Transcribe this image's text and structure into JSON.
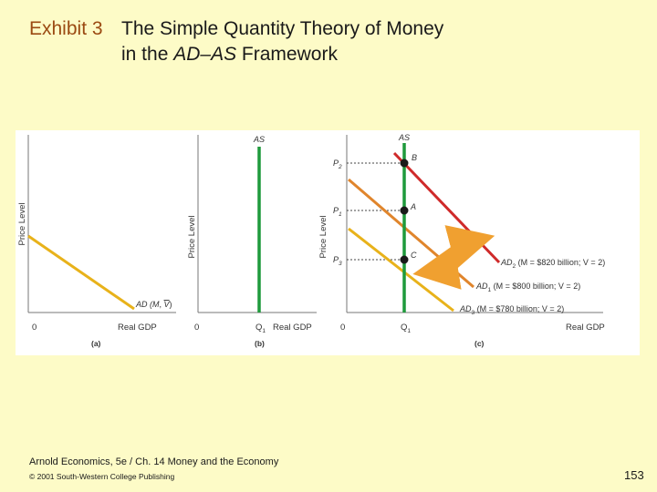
{
  "slide": {
    "exhibit_label": "Exhibit 3",
    "title_line1": "The Simple Quantity Theory of Money",
    "title_line2_pre": "in the ",
    "title_line2_em": "AD–AS",
    "title_line2_post": " Framework",
    "footer_source": "Arnold Economics, 5e / Ch. 14 Money and the Economy",
    "footer_copyright": "© 2001 South-Western College Publishing",
    "page_number": "153"
  },
  "colors": {
    "background": "#fdfbc7",
    "exhibit_label": "#9b4a12",
    "as_curve": "#1e9a3c",
    "ad_low": "#e8b21a",
    "ad_mid": "#e0852c",
    "ad_high": "#cf2a2a",
    "arrow": "#f0a030"
  },
  "panel_a": {
    "y_axis_label": "Price Level",
    "x_axis_label": "Real GDP",
    "origin_label": "0",
    "curve_label_pre": "AD (",
    "curve_label_m": "M",
    "curve_label_sep": ", ",
    "curve_label_v": "V",
    "curve_label_post": ")",
    "panel_label": "(a)"
  },
  "panel_b": {
    "y_axis_label": "Price Level",
    "x_axis_label": "Real GDP",
    "origin_label": "0",
    "as_label": "AS",
    "q_label": "Q",
    "q_sub": "1",
    "panel_label": "(b)"
  },
  "panel_c": {
    "y_axis_label": "Price Level",
    "x_axis_label": "Real GDP",
    "origin_label": "0",
    "as_label": "AS",
    "q_label": "Q",
    "q_sub": "1",
    "panel_label": "(c)",
    "price_labels": [
      {
        "main": "P",
        "sub": "2"
      },
      {
        "main": "P",
        "sub": "1"
      },
      {
        "main": "P",
        "sub": "3"
      }
    ],
    "points": [
      "B",
      "A",
      "C"
    ],
    "ad_labels": [
      {
        "pre": "AD",
        "sub": "2",
        "rest": " (M = $820 billion; V = 2)"
      },
      {
        "pre": "AD",
        "sub": "1",
        "rest": " (M = $800 billion; V = 2)"
      },
      {
        "pre": "AD",
        "sub": "3",
        "rest": " (M = $780 billion; V = 2)"
      }
    ]
  }
}
